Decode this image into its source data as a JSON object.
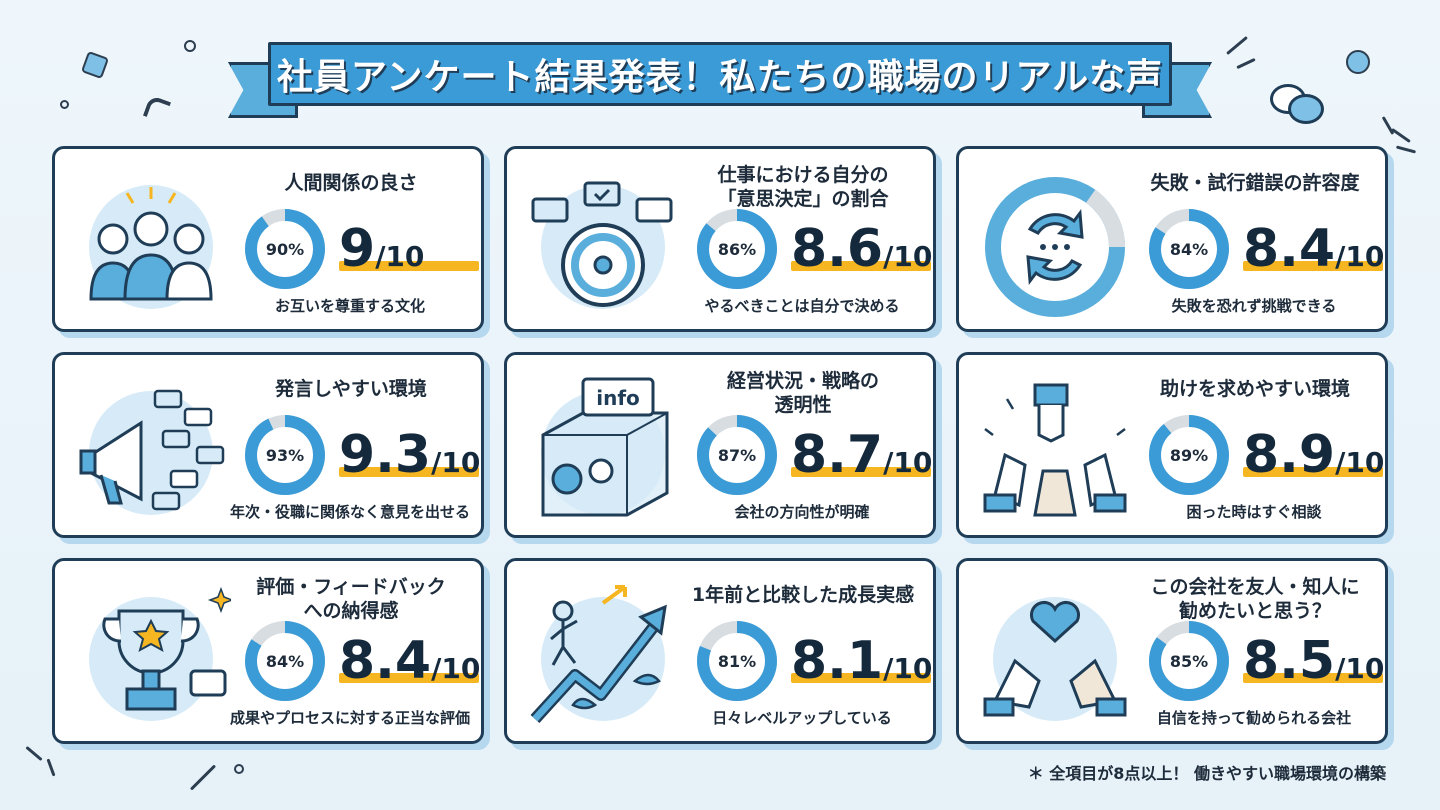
{
  "header": {
    "title": "社員アンケート結果発表！私たちの職場のリアルな声"
  },
  "colors": {
    "accent": "#3b9bd6",
    "outline": "#1f3d57",
    "highlight": "#f5b622",
    "track": "#d8dde2",
    "background": "#eaf3f9"
  },
  "cards": [
    {
      "title_lines": [
        "人間関係の良さ"
      ],
      "percent_label": "90%",
      "percent": 90,
      "score": "9",
      "denominator": "/10",
      "subtitle": "お互いを尊重する文化",
      "icon": "people-group-icon"
    },
    {
      "title_lines": [
        "仕事における自分の",
        "「意思決定」の割合"
      ],
      "percent_label": "86%",
      "percent": 86,
      "score": "8.6",
      "denominator": "/10",
      "subtitle": "やるべきことは自分で決める",
      "icon": "steering-wheel-icon"
    },
    {
      "title_lines": [
        "失敗・試行錯誤の許容度"
      ],
      "percent_label": "84%",
      "percent": 84,
      "score": "8.4",
      "denominator": "/10",
      "subtitle": "失敗を恐れず挑戦できる",
      "icon": "cycle-arrows-icon"
    },
    {
      "title_lines": [
        "発言しやすい環境"
      ],
      "percent_label": "93%",
      "percent": 93,
      "score": "9.3",
      "denominator": "/10",
      "subtitle": "年次・役職に関係なく意見を出せる",
      "icon": "megaphone-icon"
    },
    {
      "title_lines": [
        "経営状況・戦略の",
        "透明性"
      ],
      "percent_label": "87%",
      "percent": 87,
      "score": "8.7",
      "denominator": "/10",
      "subtitle": "会社の方向性が明確",
      "icon": "transparent-box-icon",
      "icon_label": "info"
    },
    {
      "title_lines": [
        "助けを求めやすい環境"
      ],
      "percent_label": "89%",
      "percent": 89,
      "score": "8.9",
      "denominator": "/10",
      "subtitle": "困った時はすぐ相談",
      "icon": "helping-hands-icon"
    },
    {
      "title_lines": [
        "評価・フィードバック",
        "への納得感"
      ],
      "percent_label": "84%",
      "percent": 84,
      "score": "8.4",
      "denominator": "/10",
      "subtitle": "成果やプロセスに対する正当な評価",
      "icon": "trophy-icon"
    },
    {
      "title_lines": [
        "1年前と比較した成長実感"
      ],
      "percent_label": "81%",
      "percent": 81,
      "score": "8.1",
      "denominator": "/10",
      "subtitle": "日々レベルアップしている",
      "icon": "growth-arrow-icon"
    },
    {
      "title_lines": [
        "この会社を友人・知人に",
        "勧めたいと思う？"
      ],
      "percent_label": "85%",
      "percent": 85,
      "score": "8.5",
      "denominator": "/10",
      "subtitle": "自信を持って勧められる会社",
      "icon": "heart-hands-icon"
    }
  ],
  "footer": {
    "note": "＊ 全項目が8点以上！ 働きやすい職場環境の構築"
  }
}
